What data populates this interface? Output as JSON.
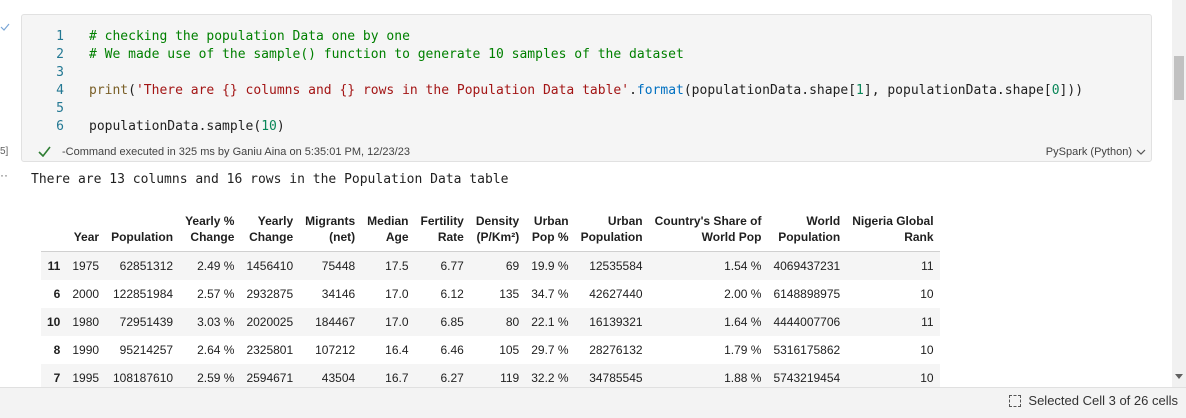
{
  "gutter": {
    "exec_count": "5]",
    "output_marker": "··"
  },
  "code_lines": [
    {
      "num": "1",
      "parts": [
        {
          "cls": "c-comment",
          "text": "# checking the population Data one by one"
        }
      ]
    },
    {
      "num": "2",
      "parts": [
        {
          "cls": "c-comment",
          "text": "# We made use of the sample() function to generate 10 samples of the dataset"
        }
      ]
    },
    {
      "num": "3",
      "parts": []
    },
    {
      "num": "4",
      "parts": [
        {
          "cls": "c-fn",
          "text": "print"
        },
        {
          "cls": "c-plain",
          "text": "("
        },
        {
          "cls": "c-str",
          "text": "'There are {} columns and {} rows in the Population Data table'"
        },
        {
          "cls": "c-plain",
          "text": "."
        },
        {
          "cls": "c-meth",
          "text": "format"
        },
        {
          "cls": "c-plain",
          "text": "(populationData.shape["
        },
        {
          "cls": "c-num",
          "text": "1"
        },
        {
          "cls": "c-plain",
          "text": "], populationData.shape["
        },
        {
          "cls": "c-num",
          "text": "0"
        },
        {
          "cls": "c-plain",
          "text": "]))"
        }
      ]
    },
    {
      "num": "5",
      "parts": []
    },
    {
      "num": "6",
      "parts": [
        {
          "cls": "c-plain",
          "text": "populationData.sample("
        },
        {
          "cls": "c-num",
          "text": "10"
        },
        {
          "cls": "c-plain",
          "text": ")"
        }
      ]
    }
  ],
  "cell_status": {
    "message": "-Command executed in 325 ms by Ganiu Aina on 5:35:01 PM, 12/23/23",
    "language": "PySpark (Python)"
  },
  "output_text": "There are 13 columns and 16 rows in the Population Data table",
  "table": {
    "headers": [
      [
        "",
        ""
      ],
      [
        "",
        "Year"
      ],
      [
        "",
        "Population"
      ],
      [
        "Yearly %",
        "Change"
      ],
      [
        "Yearly",
        "Change"
      ],
      [
        "Migrants",
        "(net)"
      ],
      [
        "Median",
        "Age"
      ],
      [
        "Fertility",
        "Rate"
      ],
      [
        "Density",
        "(P/Km²)"
      ],
      [
        "Urban",
        "Pop %"
      ],
      [
        "Urban",
        "Population"
      ],
      [
        "Country's Share of",
        "World Pop"
      ],
      [
        "World",
        "Population"
      ],
      [
        "Nigeria Global",
        "Rank"
      ]
    ],
    "rows": [
      [
        "11",
        "1975",
        "62851312",
        "2.49 %",
        "1456410",
        "75448",
        "17.5",
        "6.77",
        "69",
        "19.9 %",
        "12535584",
        "1.54 %",
        "4069437231",
        "11"
      ],
      [
        "6",
        "2000",
        "122851984",
        "2.57 %",
        "2932875",
        "34146",
        "17.0",
        "6.12",
        "135",
        "34.7 %",
        "42627440",
        "2.00 %",
        "6148898975",
        "10"
      ],
      [
        "10",
        "1980",
        "72951439",
        "3.03 %",
        "2020025",
        "184467",
        "17.0",
        "6.85",
        "80",
        "22.1 %",
        "16139321",
        "1.64 %",
        "4444007706",
        "11"
      ],
      [
        "8",
        "1990",
        "95214257",
        "2.64 %",
        "2325801",
        "107212",
        "16.4",
        "6.46",
        "105",
        "29.7 %",
        "28276132",
        "1.79 %",
        "5316175862",
        "10"
      ],
      [
        "7",
        "1995",
        "108187610",
        "2.59 %",
        "2594671",
        "43504",
        "16.7",
        "6.27",
        "119",
        "32.2 %",
        "34785545",
        "1.88 %",
        "5743219454",
        "10"
      ]
    ]
  },
  "statusbar": {
    "selected_cell": "Selected Cell 3 of 26 cells"
  },
  "colors": {
    "accent": "#2e7d32",
    "cell_bg": "#f5f5f5"
  },
  "icons": {
    "exec_check": "check-icon",
    "caret": "chevron-down-icon",
    "selection": "selection-icon"
  }
}
